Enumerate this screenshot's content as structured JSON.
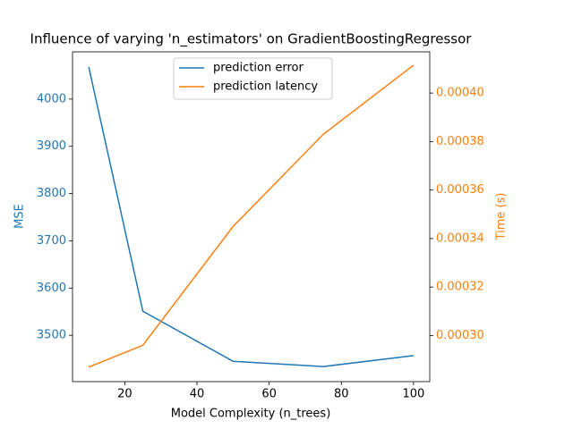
{
  "chart_data": {
    "type": "line",
    "title": "Influence of varying 'n_estimators' on GradientBoostingRegressor",
    "xlabel": "Model Complexity (n_trees)",
    "ylabel": "MSE",
    "y2label": "Time (s)",
    "x": [
      10,
      25,
      50,
      75,
      100
    ],
    "series": [
      {
        "name": "prediction error",
        "color": "#1f77b4",
        "values": [
          4068,
          3551,
          3445,
          3434,
          3457
        ]
      },
      {
        "name": "prediction latency",
        "color": "#ff7f0e",
        "axis": "y2",
        "values": [
          0.000287,
          0.000296,
          0.000345,
          0.000383,
          0.0004115
        ]
      }
    ],
    "xlim": [
      5.5,
      104.5
    ],
    "xticks": [
      20,
      40,
      60,
      80,
      100
    ],
    "ylim": [
      3402,
      4100
    ],
    "yticks": [
      3500,
      3600,
      3700,
      3800,
      3900,
      4000
    ],
    "y2lim": [
      0.000281,
      0.000417
    ],
    "y2ticks": [
      {
        "value": 0.0003,
        "label": "0.00030"
      },
      {
        "value": 0.00032,
        "label": "0.00032"
      },
      {
        "value": 0.00034,
        "label": "0.00034"
      },
      {
        "value": 0.00036,
        "label": "0.00036"
      },
      {
        "value": 0.00038,
        "label": "0.00038"
      },
      {
        "value": 0.0004,
        "label": "0.00040"
      }
    ],
    "legend": "upper center",
    "grid": false
  }
}
